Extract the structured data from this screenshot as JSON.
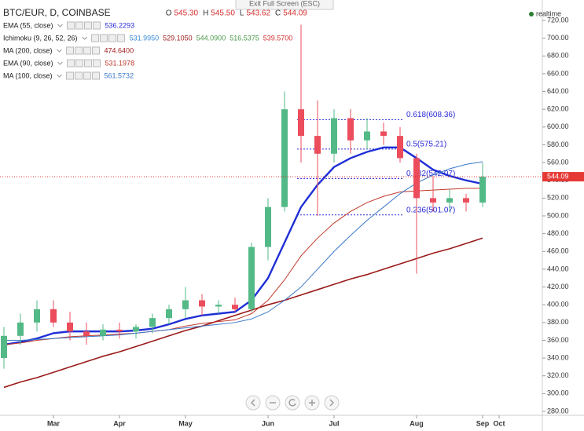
{
  "top_notice": "Exit Full Screen (ESC)",
  "realtime": "realtime",
  "chart_data": {
    "type": "candlestick",
    "symbol": "BTC/EUR, D, COINBASE",
    "ohlc_labels": [
      "O",
      "H",
      "L",
      "C"
    ],
    "ohlc_values": [
      "545.30",
      "545.50",
      "543.62",
      "544.09"
    ],
    "last_price": {
      "value": 544.09,
      "label": "544.09"
    },
    "categories": [
      null,
      null,
      null,
      "Mar",
      null,
      null,
      null,
      "Apr",
      null,
      null,
      null,
      "May",
      null,
      null,
      null,
      null,
      "Jun",
      null,
      null,
      null,
      "Jul",
      null,
      null,
      null,
      null,
      "Aug",
      null,
      null,
      null,
      "Sep",
      "Oct"
    ],
    "open": [
      340,
      365,
      380,
      395,
      380,
      370,
      365,
      372,
      370,
      375,
      385,
      395,
      405,
      398,
      400,
      395,
      465,
      510,
      620,
      590,
      570,
      610,
      585,
      595,
      590,
      565,
      520,
      515,
      520,
      515,
      null
    ],
    "high": [
      375,
      390,
      405,
      405,
      392,
      380,
      378,
      380,
      378,
      390,
      400,
      420,
      412,
      405,
      408,
      470,
      520,
      640,
      715,
      630,
      620,
      620,
      610,
      605,
      600,
      570,
      545,
      530,
      525,
      560,
      null
    ],
    "low": [
      328,
      355,
      370,
      375,
      360,
      355,
      360,
      362,
      362,
      368,
      378,
      385,
      388,
      390,
      392,
      392,
      450,
      505,
      560,
      500,
      560,
      570,
      575,
      580,
      560,
      435,
      505,
      505,
      505,
      510,
      null
    ],
    "close": [
      365,
      380,
      395,
      380,
      370,
      365,
      372,
      370,
      375,
      385,
      395,
      405,
      398,
      400,
      395,
      465,
      510,
      620,
      590,
      570,
      610,
      585,
      595,
      590,
      565,
      520,
      515,
      520,
      515,
      544.09,
      null
    ],
    "up_color": "#53b987",
    "down_color": "#eb4d5c",
    "series": [
      {
        "name": "EMA (55, close)",
        "legend_values": [
          "536.2293"
        ],
        "legend_colors": [
          "#2a2ad8"
        ],
        "color": "#1f2fd6",
        "width": 2.4,
        "values": [
          355,
          358,
          362,
          368,
          370,
          370,
          370,
          370,
          371,
          373,
          378,
          384,
          388,
          390,
          392,
          405,
          430,
          470,
          510,
          535,
          555,
          565,
          572,
          577,
          577,
          565,
          552,
          545,
          540,
          536,
          null
        ]
      },
      {
        "name": "Ichimoku (9, 26, 52, 26)",
        "legend_values": [
          "531.9950",
          "529.1050",
          "544.0900",
          "516.5375",
          "539.5700"
        ],
        "legend_colors": [
          "#3a8ad8",
          "#a02020",
          "#4d9a4d",
          "#4d9a4d",
          "#d03030"
        ],
        "color": null,
        "values": null
      },
      {
        "name": "MA (200, close)",
        "legend_values": [
          "474.6400"
        ],
        "legend_colors": [
          "#9b1a1a"
        ],
        "color": "#9b1a1a",
        "width": 1.6,
        "values": [
          307,
          313,
          318,
          324,
          330,
          336,
          342,
          347,
          353,
          359,
          365,
          371,
          376,
          382,
          388,
          394,
          400,
          405,
          411,
          417,
          423,
          429,
          434,
          440,
          446,
          452,
          458,
          463,
          469,
          475,
          null
        ]
      },
      {
        "name": "EMA (90, close)",
        "legend_values": [
          "531.1978"
        ],
        "legend_colors": [
          "#c0392b"
        ],
        "color": "#c0392b",
        "width": 1,
        "values": [
          355,
          357,
          360,
          362,
          364,
          365,
          366,
          367,
          368,
          370,
          372,
          376,
          379,
          381,
          383,
          390,
          405,
          428,
          455,
          475,
          492,
          505,
          515,
          522,
          527,
          528,
          529,
          530,
          531,
          531,
          null
        ]
      },
      {
        "name": "MA (100, close)",
        "legend_values": [
          "561.5732"
        ],
        "legend_colors": [
          "#3a78c8"
        ],
        "color": "#3a78c8",
        "width": 1,
        "values": [
          360,
          360,
          361,
          362,
          363,
          364,
          365,
          366,
          368,
          370,
          372,
          374,
          376,
          378,
          380,
          384,
          392,
          405,
          420,
          440,
          460,
          478,
          495,
          510,
          525,
          537,
          546,
          553,
          558,
          561,
          null
        ]
      }
    ],
    "fib_levels": [
      {
        "price": 608.36,
        "label": "0.618(608.36)"
      },
      {
        "price": 575.21,
        "label": "0.5(575.21)"
      },
      {
        "price": 542.07,
        "label": "0.382(542.07)"
      },
      {
        "price": 501.07,
        "label": "0.236(501.07)"
      }
    ],
    "ylim": [
      280,
      720
    ],
    "yticks": [
      {
        "value": 280,
        "label": "280.00"
      },
      {
        "value": 300,
        "label": "300.00"
      },
      {
        "value": 320,
        "label": "320.00"
      },
      {
        "value": 340,
        "label": "340.00"
      },
      {
        "value": 360,
        "label": "360.00"
      },
      {
        "value": 380,
        "label": "380.00"
      },
      {
        "value": 400,
        "label": "400.00"
      },
      {
        "value": 420,
        "label": "420.00"
      },
      {
        "value": 440,
        "label": "440.00"
      },
      {
        "value": 460,
        "label": "460.00"
      },
      {
        "value": 480,
        "label": "480.00"
      },
      {
        "value": 500,
        "label": "500.00"
      },
      {
        "value": 520,
        "label": "520.00"
      },
      {
        "value": 540,
        "label": "540.00"
      },
      {
        "value": 560,
        "label": "560.00"
      },
      {
        "value": 580,
        "label": "580.00"
      },
      {
        "value": 600,
        "label": "600.00"
      },
      {
        "value": 620,
        "label": "620.00"
      },
      {
        "value": 640,
        "label": "640.00"
      },
      {
        "value": 660,
        "label": "660.00"
      },
      {
        "value": 680,
        "label": "680.00"
      },
      {
        "value": 700,
        "label": "700.00"
      },
      {
        "value": 720,
        "label": "720.00"
      }
    ]
  }
}
